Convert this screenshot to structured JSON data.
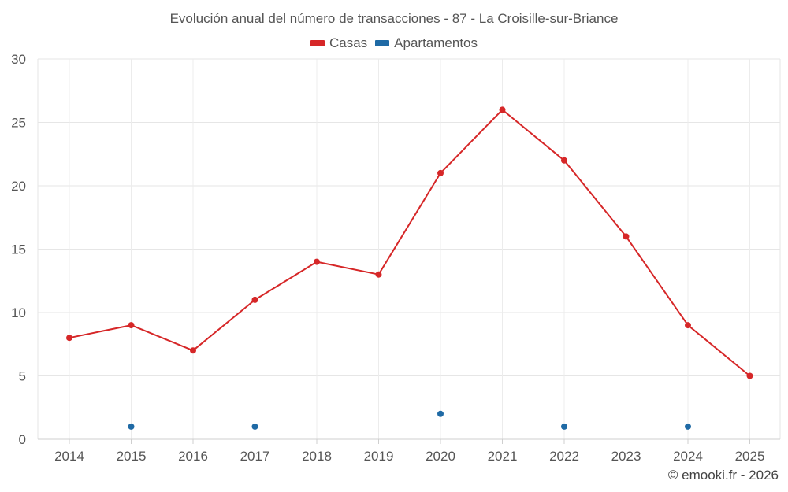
{
  "chart_data": {
    "type": "line",
    "title": "Evolución anual del número de transacciones - 87 - La Croisille-sur-Briance",
    "categories": [
      "2014",
      "2015",
      "2016",
      "2017",
      "2018",
      "2019",
      "2020",
      "2021",
      "2022",
      "2023",
      "2024",
      "2025"
    ],
    "series": [
      {
        "name": "Casas",
        "color": "#d62728",
        "values": [
          8,
          9,
          7,
          11,
          14,
          13,
          21,
          26,
          22,
          16,
          9,
          5
        ],
        "mode": "line"
      },
      {
        "name": "Apartamentos",
        "color": "#1f6aa5",
        "values": [
          null,
          1,
          null,
          1,
          null,
          null,
          2,
          null,
          1,
          null,
          1,
          null
        ],
        "mode": "points"
      }
    ],
    "ylim": [
      0,
      30
    ],
    "yticks": [
      "0",
      "5",
      "10",
      "15",
      "20",
      "25",
      "30"
    ],
    "xlabel": "",
    "ylabel": "",
    "grid": true,
    "legend": "top-center"
  },
  "credit": "© emooki.fr - 2026"
}
